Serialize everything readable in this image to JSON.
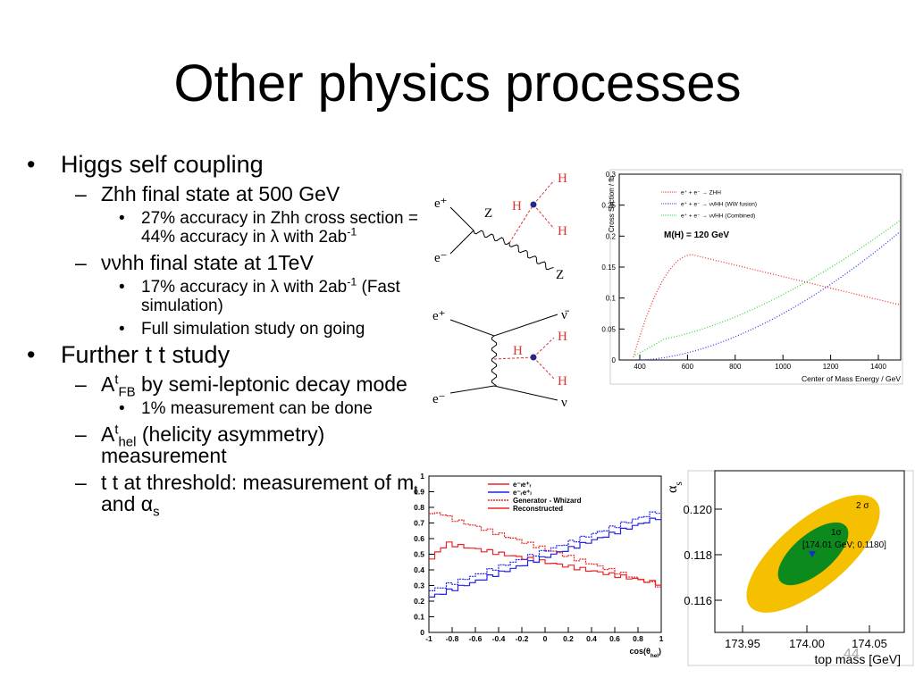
{
  "title": "Other physics processes",
  "markers": {
    "1": "•",
    "2": "–",
    "3": "•"
  },
  "outline": [
    {
      "level": 1,
      "text": "Higgs self coupling"
    },
    {
      "level": 2,
      "text": "Zhh final state at 500 GeV"
    },
    {
      "level": 3,
      "text": [
        "27% accuracy in Zhh cross section = 44% accuracy in λ with 2ab",
        {
          "sup": "-1"
        }
      ]
    },
    {
      "level": 2,
      "text": "ννhh final state at 1TeV"
    },
    {
      "level": 3,
      "text": [
        "17% accuracy in λ with 2ab",
        {
          "sup": "-1"
        },
        " (Fast simulation)"
      ]
    },
    {
      "level": 3,
      "text": "Full simulation study on going"
    },
    {
      "level": 1,
      "text": "Further t t study"
    },
    {
      "level": 2,
      "text": [
        "A",
        {
          "sup": "t"
        },
        {
          "sub": "FB"
        },
        " by semi-leptonic decay mode"
      ]
    },
    {
      "level": 3,
      "text": "1% measurement can be done"
    },
    {
      "level": 2,
      "text": [
        "A",
        {
          "sup": "t"
        },
        {
          "sub": "hel"
        },
        " (helicity asymmetry) measurement"
      ]
    },
    {
      "level": 2,
      "text": [
        "t t at threshold: measurement of m",
        {
          "sub": "t"
        },
        " and α",
        {
          "sub": "s"
        }
      ]
    }
  ],
  "diagram_zhh": {
    "e_plus": "e⁺",
    "e_minus": "e⁻",
    "z": "Z",
    "h": "H",
    "h1": "H",
    "h2": "H",
    "z_out": "Z"
  },
  "diagram_nnhh": {
    "e_plus": "e⁺",
    "e_minus": "e⁻",
    "nubar": "ν̄",
    "nu": "ν",
    "h": "H",
    "h1": "H",
    "h2": "H"
  },
  "cross_section_plot": {
    "y_label": "Cross Section / fb",
    "x_label": "Center of Mass Energy / GeV",
    "yticks": [
      "0",
      "0.05",
      "0.1",
      "0.15",
      "0.2",
      "0.25",
      "0.3"
    ],
    "xticks": [
      "400",
      "600",
      "800",
      "1000",
      "1200",
      "1400"
    ],
    "legend": [
      "e⁺ + e⁻ → ZHH",
      "e⁺ + e⁻ → νν̄HH  (WW fusion)",
      "e⁺ + e⁻ → νν̄HH  (Combined)"
    ],
    "note": "M(H) = 120 GeV"
  },
  "helicity_plot": {
    "yticks": [
      "0",
      "0.1",
      "0.2",
      "0.3",
      "0.4",
      "0.5",
      "0.6",
      "0.7",
      "0.8",
      "0.9",
      "1"
    ],
    "xticks": [
      "-1",
      "-0.8",
      "-0.6",
      "-0.4",
      "-0.2",
      "0",
      "0.2",
      "0.4",
      "0.6",
      "0.8",
      "1"
    ],
    "x_label": [
      "cos(θ",
      {
        "sub": "hel"
      },
      ")"
    ],
    "legend": [
      "e⁻ₗe⁺ᵣ",
      "e⁻ᵣe⁺ₗ",
      "Generator - Whizard",
      "Reconstructed"
    ]
  },
  "alpha_plot": {
    "y_label": [
      "α",
      {
        "sub": "s"
      }
    ],
    "yticks": [
      "0.120",
      "0.118",
      "0.116"
    ],
    "xticks": [
      "173.95",
      "174.00",
      "174.05"
    ],
    "x_label": "top mass [GeV]",
    "two_sigma": "2 σ",
    "one_sigma": "1σ",
    "best_fit": "[174.01 GeV; 0.1180]"
  },
  "page_number": "44"
}
